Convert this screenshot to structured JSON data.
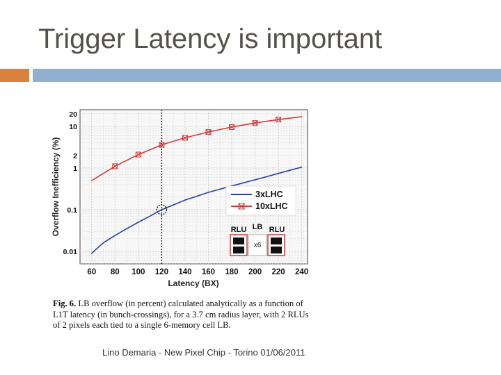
{
  "slide": {
    "title": "Trigger Latency is important",
    "footer": "Lino Demaria - New Pixel Chip -  Torino 01/06/2011",
    "accent_orange": "#d9823f",
    "accent_blue": "#8fb0cf"
  },
  "figure": {
    "caption_label": "Fig. 6.",
    "caption_text": "LB overflow (in percent) calculated analytically as a function of L1T latency (in bunch-crossings), for a 3.7 cm radius layer, with 2 RLUs of 2 pixels each tied to a single 6-memory cell LB.",
    "inset": {
      "rlu_left": "RLU",
      "lb": "LB",
      "rlu_right": "RLU",
      "multiplier": "x6"
    }
  },
  "chart_data": {
    "type": "line",
    "xlabel": "Latency (BX)",
    "ylabel": "Overflow Inefficiency (%)",
    "xlim": [
      50,
      245
    ],
    "ylim": [
      0.005,
      25
    ],
    "yscale": "log",
    "grid": true,
    "legend_position": "right",
    "x_ticks": [
      60,
      80,
      100,
      120,
      140,
      160,
      180,
      200,
      220,
      240
    ],
    "y_ticks": [
      0.01,
      0.1,
      1,
      2,
      10,
      20
    ],
    "y_tick_labels": [
      "0.01",
      "0.1",
      "1",
      "2",
      "10",
      "20"
    ],
    "marked_latency": 120,
    "highlight_point": {
      "x": 120,
      "y": 0.1
    },
    "series": [
      {
        "name": "3xLHC",
        "color": "#2a3fa0",
        "x": [
          60,
          70,
          80,
          90,
          100,
          110,
          120,
          130,
          140,
          150,
          160,
          170,
          180,
          190,
          200,
          210,
          220,
          230,
          240
        ],
        "y": [
          0.009,
          0.016,
          0.024,
          0.035,
          0.05,
          0.07,
          0.1,
          0.13,
          0.17,
          0.21,
          0.26,
          0.31,
          0.37,
          0.44,
          0.52,
          0.62,
          0.74,
          0.88,
          1.05
        ]
      },
      {
        "name": "10xLHC",
        "color": "#d23a3a",
        "x": [
          60,
          80,
          100,
          120,
          140,
          160,
          180,
          200,
          220,
          240
        ],
        "y": [
          0.5,
          1.1,
          2.1,
          3.6,
          5.3,
          7.3,
          9.6,
          12,
          14.5,
          17
        ],
        "markers": [
          80,
          100,
          120,
          140,
          160,
          180,
          200,
          220
        ]
      }
    ]
  }
}
